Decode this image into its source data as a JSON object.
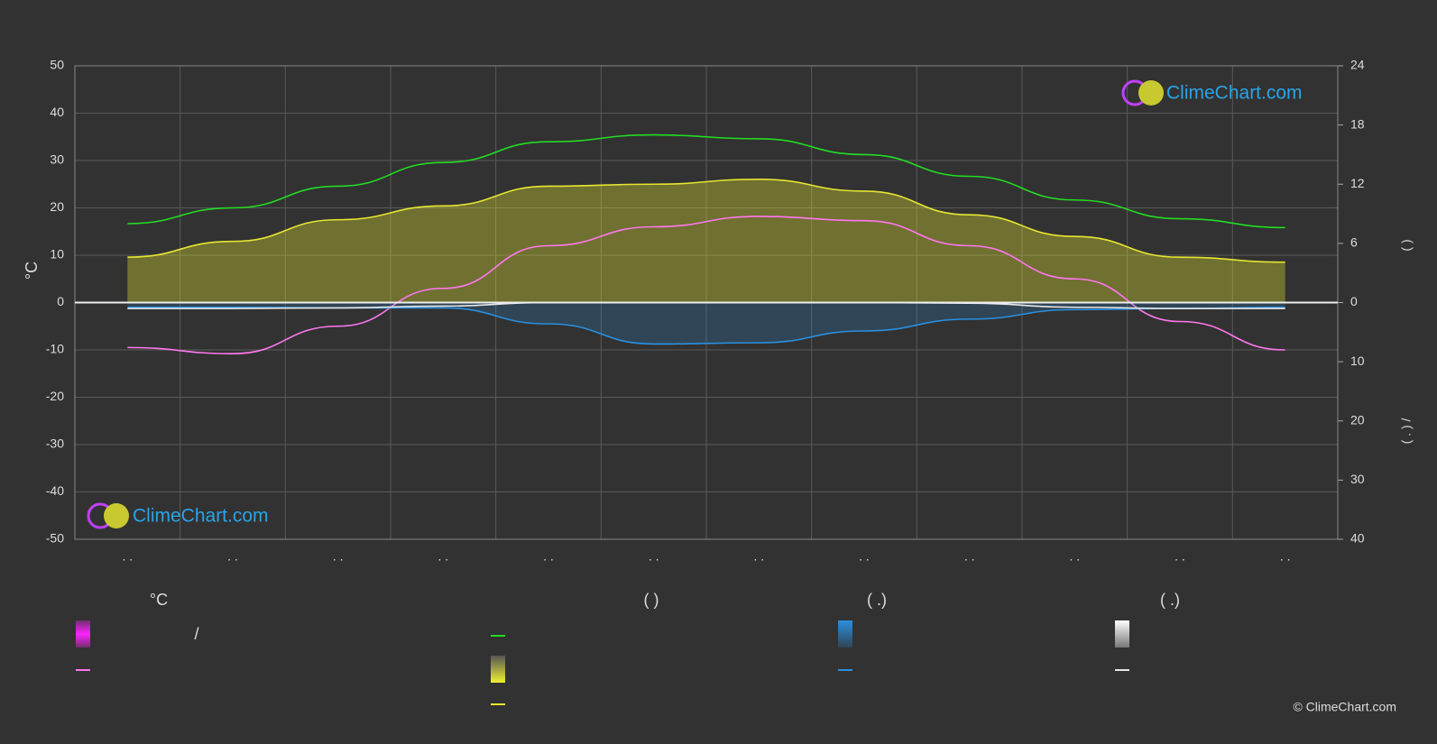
{
  "chart_data": {
    "type": "line",
    "ylabel": "°C",
    "y2label": "(          )",
    "y3label": "( . )          /",
    "categories": [
      ". .",
      ". .",
      ". .",
      ". .",
      ". .",
      ". .",
      ". .",
      ". .",
      ". .",
      ". .",
      ". .",
      ". ."
    ],
    "ylim": [
      -50,
      50
    ],
    "yticks": [
      50,
      40,
      30,
      20,
      10,
      0,
      -10,
      -20,
      -30,
      -40,
      -50
    ],
    "y2lim": [
      -24,
      24
    ],
    "y2ticks": [
      24,
      18,
      12,
      6,
      0
    ],
    "y3lim": [
      40,
      -40
    ],
    "y3ticks": [
      10,
      20,
      30,
      40
    ],
    "grid": true,
    "series": [
      {
        "color": "#22dd22",
        "axis": "y2",
        "values": [
          8.0,
          9.6,
          11.8,
          14.2,
          16.3,
          17.0,
          16.6,
          15.0,
          12.8,
          10.4,
          8.5,
          7.6
        ]
      },
      {
        "color": "#e6e632",
        "axis": "y2",
        "values": [
          4.6,
          6.2,
          8.4,
          9.8,
          11.8,
          12.0,
          12.5,
          11.3,
          8.9,
          6.7,
          4.6,
          4.1
        ]
      },
      {
        "color": "#ff77ee",
        "axis": "y",
        "values": [
          -9.5,
          -10.8,
          -5,
          3,
          12,
          16,
          18.2,
          17.3,
          12,
          5,
          -4,
          -10
        ]
      },
      {
        "color": "#2a8fe0",
        "axis": "y3",
        "values": [
          0.8,
          0.8,
          0.9,
          0.9,
          3.6,
          7.0,
          6.8,
          4.8,
          2.8,
          1.2,
          1.0,
          0.8
        ]
      },
      {
        "color": "#e8e8e8",
        "axis": "y3",
        "values": [
          1.0,
          1.0,
          0.9,
          0.6,
          0,
          0,
          0,
          0,
          0.1,
          0.8,
          1.0,
          1.0
        ]
      }
    ],
    "legend_titles": [
      "°C",
      "(          )",
      "(   .)",
      "(   .)"
    ],
    "legend_text": "/",
    "logo": "ClimeChart.com",
    "copyright": "© ClimeChart.com"
  }
}
